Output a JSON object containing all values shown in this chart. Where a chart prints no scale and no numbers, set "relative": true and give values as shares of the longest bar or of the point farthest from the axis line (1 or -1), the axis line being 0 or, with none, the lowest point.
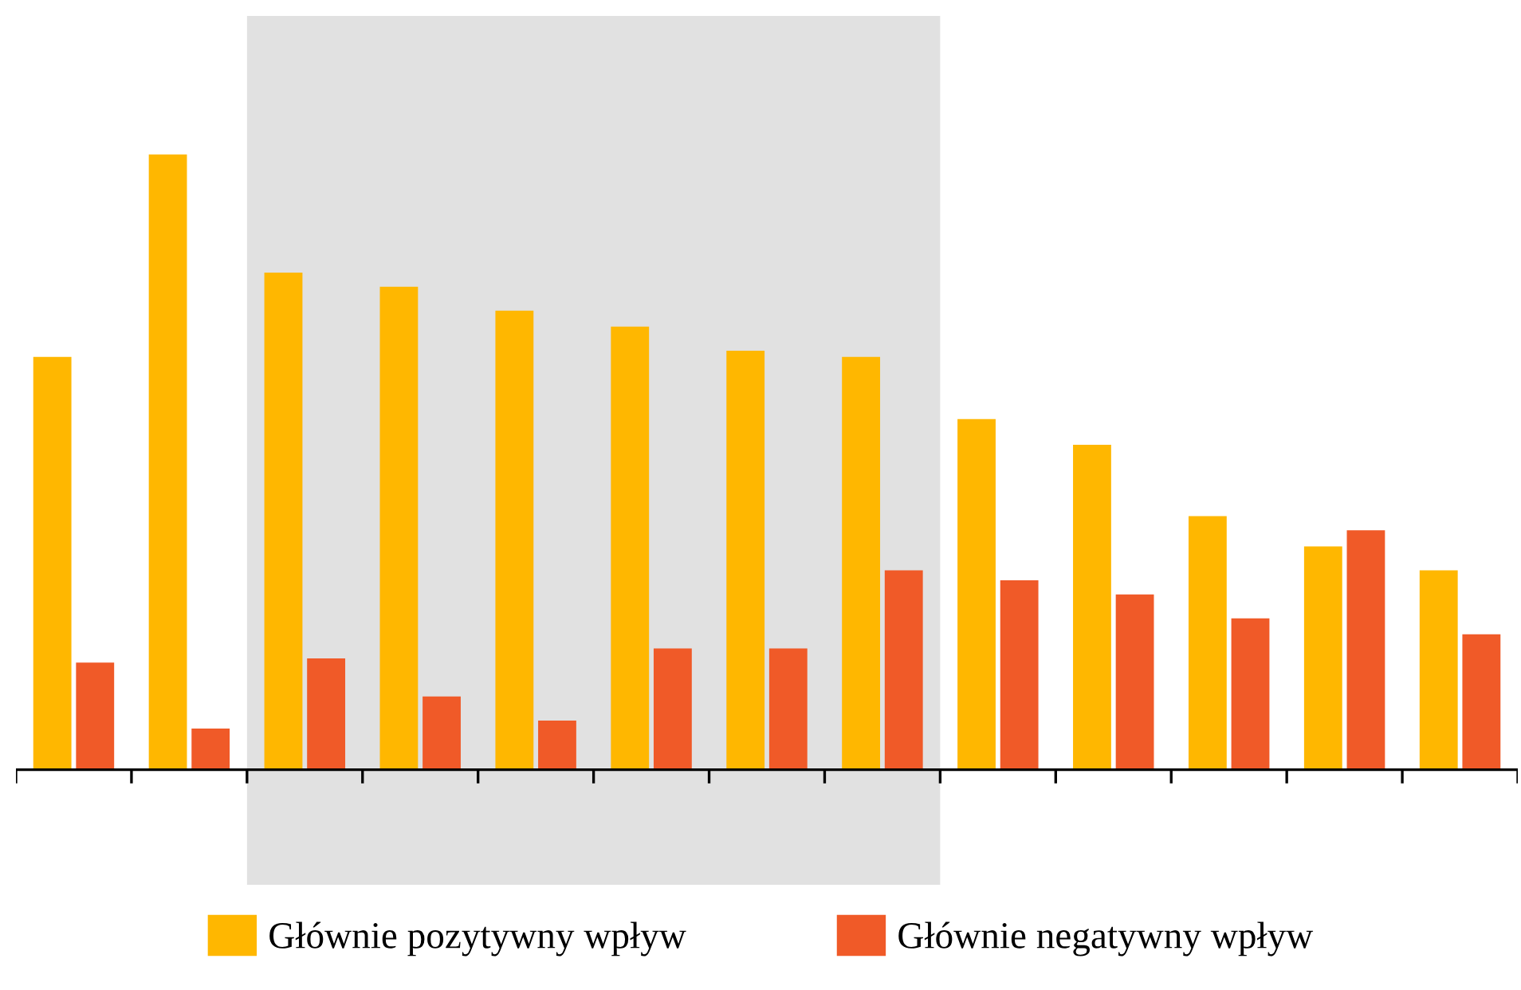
{
  "chart_data": {
    "type": "bar",
    "relative": true,
    "categories": [
      null,
      null,
      null,
      null,
      null,
      null,
      null,
      null,
      null,
      null,
      null,
      null,
      null
    ],
    "series": [
      {
        "name": "Głównie pozytywny wpływ",
        "color": "#ffb700",
        "values": [
          0.671,
          1,
          0.808,
          0.785,
          0.746,
          0.72,
          0.681,
          0.671,
          0.57,
          0.528,
          0.412,
          0.363,
          0.324
        ]
      },
      {
        "name": "Głównie negatywny wpływ",
        "color": "#f05a28",
        "values": [
          0.174,
          0.067,
          0.181,
          0.119,
          0.08,
          0.197,
          0.197,
          0.324,
          0.308,
          0.285,
          0.246,
          0.389,
          0.22
        ]
      }
    ],
    "legend": "bottom",
    "grid": false
  }
}
